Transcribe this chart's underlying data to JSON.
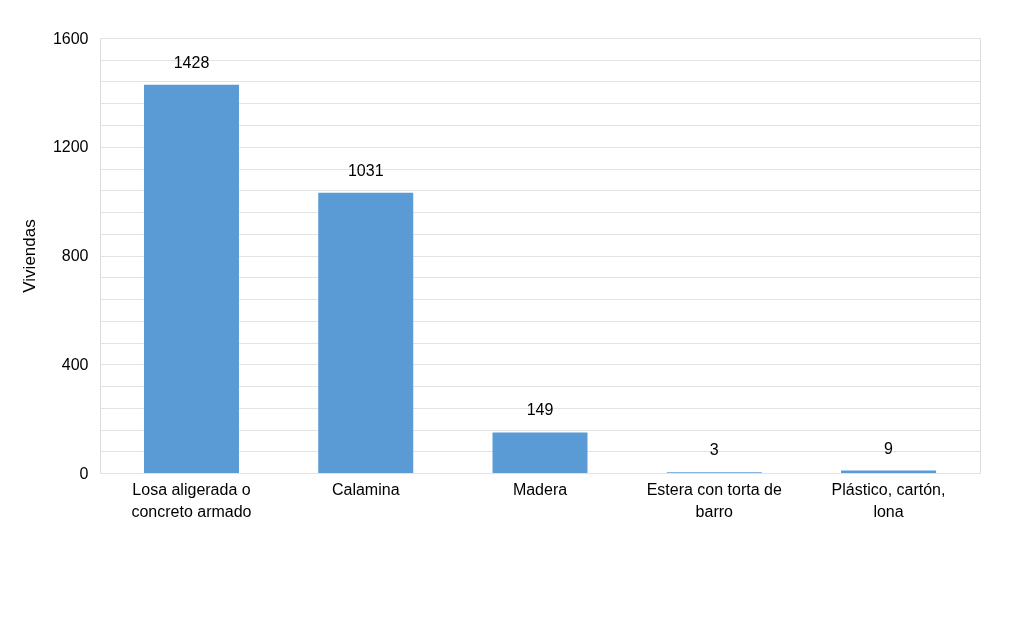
{
  "chart_data": {
    "type": "bar",
    "ylabel": "Viviendas",
    "categories": [
      "Losa aligerada o concreto armado",
      "Calamina",
      "Madera",
      "Estera con torta de barro",
      "Plástico, cartón, lona"
    ],
    "values": [
      1428,
      1031,
      149,
      3,
      9
    ],
    "color": "#5b9bd5",
    "ylim": [
      0,
      1600
    ],
    "yticks": [
      0,
      {
        "value": 80,
        "label": null
      },
      {
        "value": 160,
        "label": null
      },
      {
        "value": 240,
        "label": null
      },
      {
        "value": 320,
        "label": null
      },
      400,
      {
        "value": 480,
        "label": null
      },
      {
        "value": 560,
        "label": null
      },
      {
        "value": 640,
        "label": null
      },
      {
        "value": 720,
        "label": null
      },
      800,
      {
        "value": 880,
        "label": null
      },
      {
        "value": 960,
        "label": null
      },
      {
        "value": 1040,
        "label": null
      },
      {
        "value": 1120,
        "label": null
      },
      1200,
      {
        "value": 1280,
        "label": null
      },
      {
        "value": 1360,
        "label": null
      },
      {
        "value": 1440,
        "label": null
      },
      {
        "value": 1520,
        "label": null
      },
      1600
    ],
    "grid": "y",
    "data_labels": true
  }
}
